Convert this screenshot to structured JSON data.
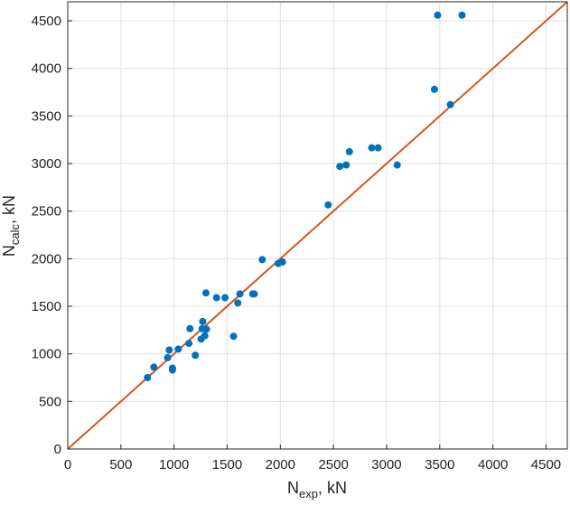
{
  "chart_data": {
    "type": "scatter",
    "title": "",
    "xlabel": {
      "main": "N",
      "sub": "exp",
      "suffix": ", kN"
    },
    "ylabel": {
      "main": "N",
      "sub": "calc",
      "suffix": ", kN"
    },
    "xlim": [
      0,
      4700
    ],
    "ylim": [
      0,
      4700
    ],
    "xticks": [
      0,
      500,
      1000,
      1500,
      2000,
      2500,
      3000,
      3500,
      4000,
      4500
    ],
    "yticks": [
      0,
      500,
      1000,
      1500,
      2000,
      2500,
      3000,
      3500,
      4000,
      4500
    ],
    "grid": true,
    "legend": "none",
    "point_color": "#0072BD",
    "line_color": "#D95319",
    "reference_line": {
      "x": [
        0,
        4700
      ],
      "y": [
        0,
        4700
      ]
    },
    "points": [
      {
        "x": 750,
        "y": 750
      },
      {
        "x": 810,
        "y": 860
      },
      {
        "x": 940,
        "y": 960
      },
      {
        "x": 955,
        "y": 1040
      },
      {
        "x": 985,
        "y": 850
      },
      {
        "x": 985,
        "y": 830
      },
      {
        "x": 1040,
        "y": 1050
      },
      {
        "x": 1140,
        "y": 1110
      },
      {
        "x": 1150,
        "y": 1265
      },
      {
        "x": 1200,
        "y": 985
      },
      {
        "x": 1255,
        "y": 1155
      },
      {
        "x": 1265,
        "y": 1265
      },
      {
        "x": 1270,
        "y": 1340
      },
      {
        "x": 1290,
        "y": 1190
      },
      {
        "x": 1305,
        "y": 1260
      },
      {
        "x": 1300,
        "y": 1640
      },
      {
        "x": 1400,
        "y": 1590
      },
      {
        "x": 1480,
        "y": 1590
      },
      {
        "x": 1560,
        "y": 1185
      },
      {
        "x": 1600,
        "y": 1535
      },
      {
        "x": 1620,
        "y": 1630
      },
      {
        "x": 1740,
        "y": 1630
      },
      {
        "x": 1755,
        "y": 1630
      },
      {
        "x": 1830,
        "y": 1990
      },
      {
        "x": 1980,
        "y": 1950
      },
      {
        "x": 2020,
        "y": 1965
      },
      {
        "x": 2450,
        "y": 2565
      },
      {
        "x": 2560,
        "y": 2970
      },
      {
        "x": 2620,
        "y": 2985
      },
      {
        "x": 2650,
        "y": 3125
      },
      {
        "x": 2860,
        "y": 3165
      },
      {
        "x": 2920,
        "y": 3165
      },
      {
        "x": 3100,
        "y": 2985
      },
      {
        "x": 3450,
        "y": 3780
      },
      {
        "x": 3480,
        "y": 4560
      },
      {
        "x": 3600,
        "y": 3620
      },
      {
        "x": 3710,
        "y": 4560
      }
    ]
  }
}
